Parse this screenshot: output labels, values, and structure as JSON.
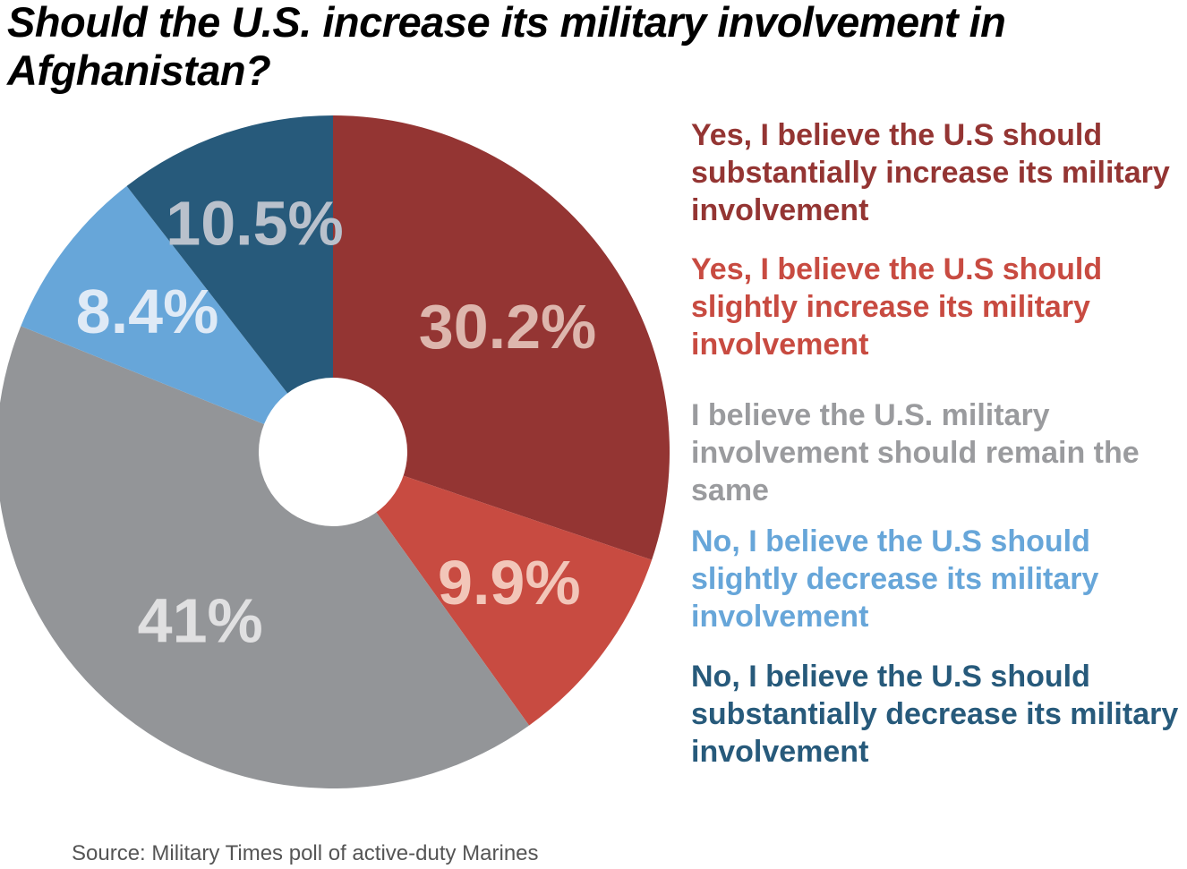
{
  "chart_data": {
    "type": "pie",
    "title": "Should the U.S. increase its military involvement in Afghanistan?",
    "donut": true,
    "slices": [
      {
        "label": "Yes, I believe the U.S should substantially increase its military involvement",
        "value": 30.2,
        "display": "30.2%",
        "color": "#943533",
        "label_color": "#ddb6ad"
      },
      {
        "label": "Yes, I believe the U.S should slightly increase its military involvement",
        "value": 9.9,
        "display": "9.9%",
        "color": "#c84b41",
        "label_color": "#f2c6b9"
      },
      {
        "label": "I believe the U.S. military involvement should remain the same",
        "value": 41,
        "display": "41%",
        "color": "#939598",
        "label_color": "#e0e0e1"
      },
      {
        "label": "No, I believe the U.S should slightly decrease its military involvement",
        "value": 8.4,
        "display": "8.4%",
        "color": "#67a6d9",
        "label_color": "#dfeaf6"
      },
      {
        "label": "No, I believe the U.S should substantially decrease its military involvement",
        "value": 10.5,
        "display": "10.5%",
        "color": "#275a7b",
        "label_color": "#b9c1cc"
      }
    ],
    "legend_colors": [
      "#943533",
      "#c84b41",
      "#9a9b9e",
      "#67a6d9",
      "#275a7b"
    ],
    "legend_placement": "right",
    "source": "Source: Military Times poll of active-duty Marines"
  }
}
